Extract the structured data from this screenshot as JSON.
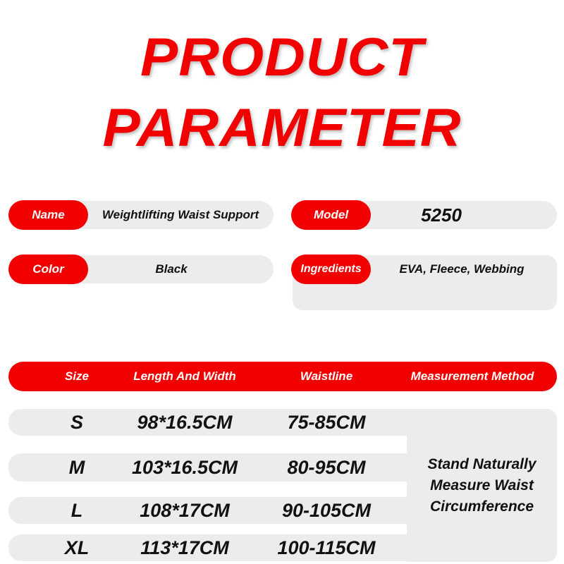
{
  "title": {
    "line1": "PRODUCT",
    "line2": "PARAMETER"
  },
  "params": [
    {
      "label": "Name",
      "value": "Weightlifting Waist Support"
    },
    {
      "label": "Model",
      "value": "5250"
    },
    {
      "label": "Color",
      "value": "Black"
    },
    {
      "label": "Ingredients",
      "value": "EVA, Fleece, Webbing"
    }
  ],
  "table": {
    "headers": [
      "Size",
      "Length And Width",
      "Waistline",
      "Measurement Method"
    ],
    "rows": [
      {
        "size": "S",
        "length_width": "98*16.5CM",
        "waistline": "75-85CM"
      },
      {
        "size": "M",
        "length_width": "103*16.5CM",
        "waistline": "80-95CM"
      },
      {
        "size": "L",
        "length_width": "108*17CM",
        "waistline": "90-105CM"
      },
      {
        "size": "XL",
        "length_width": "113*17CM",
        "waistline": "100-115CM"
      }
    ],
    "measurement_method": "Stand Naturally Measure Waist Circumference"
  },
  "colors": {
    "accent": "#f20000",
    "panel": "#ececec"
  }
}
